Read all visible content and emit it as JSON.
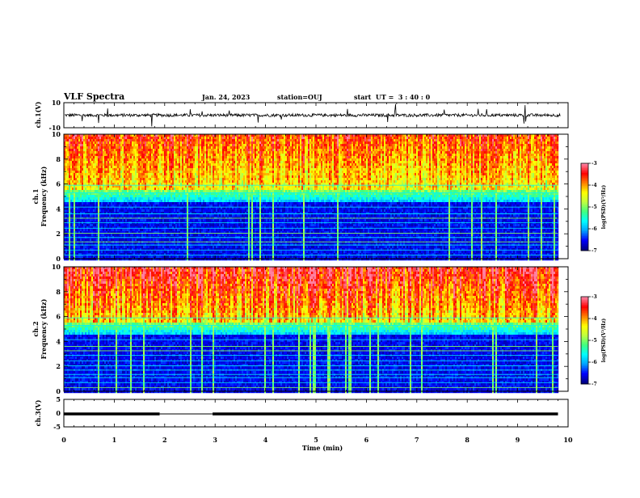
{
  "header": {
    "title": "VLF Spectra",
    "date": "Jan. 24, 2023",
    "station": "station=OUJ",
    "start": "start  UT =  3 : 40 : 0"
  },
  "colors": {
    "waveform": "#000000",
    "colormap": [
      "#00007f",
      "#0000ff",
      "#00a0ff",
      "#00ffff",
      "#40ff80",
      "#c0ff40",
      "#ffff00",
      "#ff8000",
      "#ff0000",
      "#ff80a0"
    ]
  },
  "chart_data": [
    {
      "id": "ch1-waveform",
      "type": "line",
      "ylabel": "ch.1(V)",
      "ylim": [
        -10,
        10
      ],
      "yticks": [
        "10",
        "-10"
      ],
      "xlim": [
        0,
        10
      ],
      "baseline": 0,
      "noise_amplitude": 1.2
    },
    {
      "id": "ch1-spectrogram",
      "type": "heatmap",
      "ylabel": "ch.1\nFrequency (kHz)",
      "ylabel_line1": "ch.1",
      "ylabel_line2": "Frequency (kHz)",
      "ylim": [
        0,
        10
      ],
      "yticks": [
        "0",
        "2",
        "4",
        "6",
        "8",
        "10"
      ],
      "xlim": [
        0,
        9.8
      ],
      "color_scale": {
        "label": "log(PSD)(V²/Hz)",
        "range": [
          -7,
          -3
        ],
        "ticks": [
          "-3",
          "-4",
          "-5",
          "-6",
          "-7"
        ]
      }
    },
    {
      "id": "ch2-spectrogram",
      "type": "heatmap",
      "ylabel": "ch.2\nFrequency (kHz)",
      "ylabel_line1": "ch.2",
      "ylabel_line2": "Frequency (kHz)",
      "ylim": [
        0,
        10
      ],
      "yticks": [
        "0",
        "2",
        "4",
        "6",
        "8",
        "10"
      ],
      "xlim": [
        0,
        9.8
      ],
      "color_scale": {
        "label": "log(PSD)(V²/Hz)",
        "range": [
          -7,
          -3
        ],
        "ticks": [
          "-3",
          "-4",
          "-5",
          "-6",
          "-7"
        ]
      }
    },
    {
      "id": "ch3-waveform",
      "type": "line",
      "ylabel": "ch.3(V)",
      "ylim": [
        -5,
        5
      ],
      "yticks": [
        "5",
        "0",
        "-5"
      ],
      "xlim": [
        0,
        10
      ],
      "segments": [
        {
          "x0": 0,
          "x1": 1.9,
          "y": -0.3,
          "weight": "thick"
        },
        {
          "x0": 1.9,
          "x1": 2.95,
          "y": -0.3,
          "weight": "thin"
        },
        {
          "x0": 2.95,
          "x1": 9.8,
          "y": -0.3,
          "weight": "thick"
        }
      ]
    }
  ],
  "xaxis": {
    "label": "Time (min)",
    "ticks": [
      "0",
      "1",
      "2",
      "3",
      "4",
      "5",
      "6",
      "7",
      "8",
      "9",
      "10"
    ],
    "range": [
      0,
      10
    ]
  }
}
